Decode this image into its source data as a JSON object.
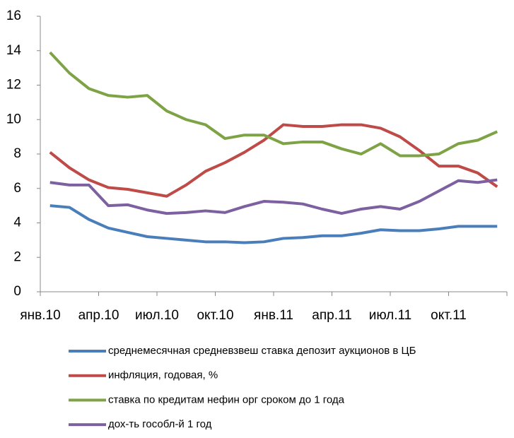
{
  "chart_data": {
    "type": "line",
    "categories": [
      "янв.10",
      null,
      null,
      "апр.10",
      null,
      null,
      "июл.10",
      null,
      null,
      "окт.10",
      null,
      null,
      "янв.11",
      null,
      null,
      "апр.11",
      null,
      null,
      "июл.11",
      null,
      null,
      "окт.11",
      null,
      null
    ],
    "series": [
      {
        "name": "среднемесячная средневзвеш ставка депозит аукционов в ЦБ",
        "color": "#4a7ebb",
        "values": [
          5.0,
          4.9,
          4.2,
          3.7,
          3.45,
          3.2,
          3.1,
          3.0,
          2.9,
          2.9,
          2.85,
          2.9,
          3.1,
          3.15,
          3.25,
          3.25,
          3.4,
          3.6,
          3.55,
          3.55,
          3.65,
          3.8,
          3.8,
          3.8
        ]
      },
      {
        "name": "инфляция, годовая, %",
        "color": "#be4b48",
        "values": [
          8.1,
          7.2,
          6.5,
          6.05,
          5.95,
          5.75,
          5.55,
          6.2,
          7.0,
          7.5,
          8.1,
          8.8,
          9.7,
          9.6,
          9.6,
          9.7,
          9.7,
          9.5,
          9.0,
          8.2,
          7.3,
          7.3,
          6.9,
          6.1
        ]
      },
      {
        "name": "ставка по кредитам нефин орг сроком до 1 года",
        "color": "#7ea345",
        "values": [
          13.9,
          12.7,
          11.8,
          11.4,
          11.3,
          11.4,
          10.5,
          10.0,
          9.7,
          8.9,
          9.1,
          9.1,
          8.6,
          8.7,
          8.7,
          8.3,
          8.0,
          8.6,
          7.9,
          7.9,
          8.0,
          8.6,
          8.8,
          9.3
        ]
      },
      {
        "name": "дох-ть гособл-й 1 год",
        "color": "#7d60a0",
        "values": [
          6.35,
          6.2,
          6.2,
          5.0,
          5.05,
          4.75,
          4.55,
          4.6,
          4.7,
          4.6,
          4.95,
          5.25,
          5.2,
          5.1,
          4.8,
          4.55,
          4.8,
          4.95,
          4.8,
          5.25,
          5.85,
          6.45,
          6.35,
          6.5
        ]
      }
    ],
    "ylim": [
      0,
      16
    ],
    "yticks": [
      0,
      2,
      4,
      6,
      8,
      10,
      12,
      14,
      16
    ],
    "grid": false
  }
}
